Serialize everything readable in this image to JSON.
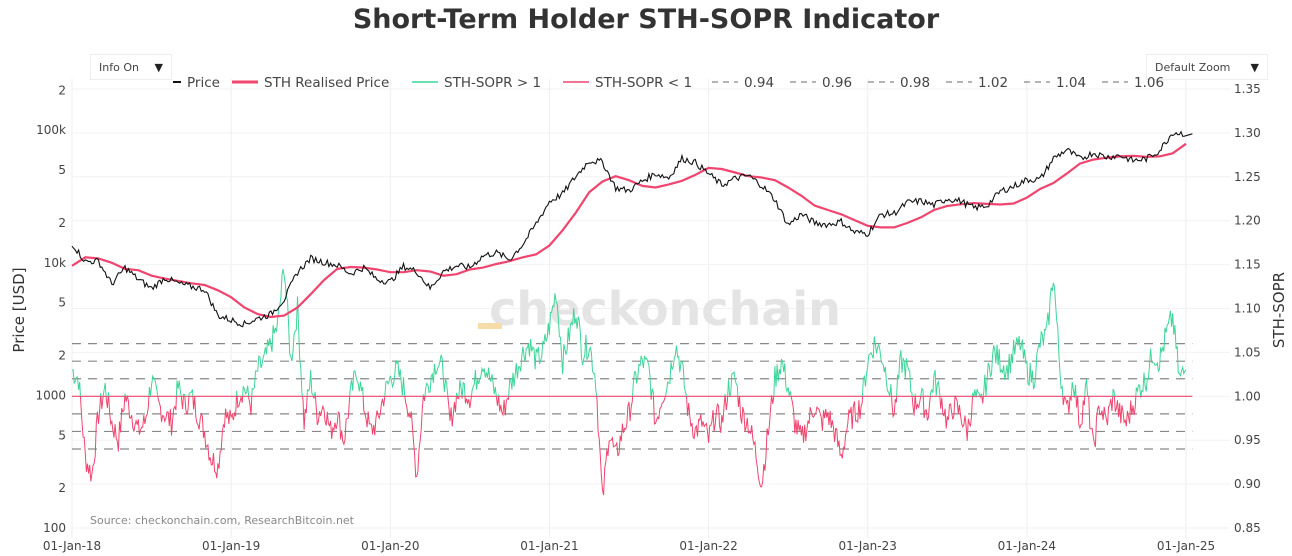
{
  "title": "Short-Term Holder STH-SOPR Indicator",
  "controls": {
    "info_label": "Info On",
    "zoom_label": "Default Zoom",
    "caret": "▼"
  },
  "source": "Source: checkonchain.com, ResearchBitcoin.net",
  "watermark": "checkonchain",
  "colors": {
    "price": "#111111",
    "realised": "#f0456e",
    "sopr_up": "#3ed598",
    "sopr_down": "#f0456e",
    "dash": "#888888",
    "grid": "#eeeeee"
  },
  "chart_data": {
    "type": "line",
    "title": "Short-Term Holder STH-SOPR Indicator",
    "legend_position": "top",
    "grid": true,
    "x_ticks": [
      "01-Jan-18",
      "01-Jan-19",
      "01-Jan-20",
      "01-Jan-21",
      "01-Jan-22",
      "01-Jan-23",
      "01-Jan-24",
      "01-Jan-25"
    ],
    "y_left": {
      "label": "Price [USD]",
      "scale": "log",
      "range": [
        100,
        250000
      ],
      "ticks": [
        {
          "v": 100,
          "t": "100"
        },
        {
          "v": 200,
          "t": "2"
        },
        {
          "v": 500,
          "t": "5"
        },
        {
          "v": 1000,
          "t": "1000"
        },
        {
          "v": 2000,
          "t": "2"
        },
        {
          "v": 5000,
          "t": "5"
        },
        {
          "v": 10000,
          "t": "10k"
        },
        {
          "v": 20000,
          "t": "2"
        },
        {
          "v": 50000,
          "t": "5"
        },
        {
          "v": 100000,
          "t": "100k"
        },
        {
          "v": 200000,
          "t": "2"
        }
      ]
    },
    "y_right": {
      "label": "STH-SOPR",
      "scale": "linear",
      "range": [
        0.85,
        1.35
      ],
      "ticks": [
        "0.85",
        "0.90",
        "0.95",
        "1.00",
        "1.05",
        "1.10",
        "1.15",
        "1.20",
        "1.25",
        "1.30",
        "1.35"
      ]
    },
    "legend": [
      {
        "name": "Price",
        "style": "solid",
        "color": "#111111"
      },
      {
        "name": "STH Realised Price",
        "style": "thick",
        "color": "#f0456e"
      },
      {
        "name": "STH-SOPR > 1",
        "style": "solid",
        "color": "#3ed598"
      },
      {
        "name": "STH-SOPR < 1",
        "style": "solid",
        "color": "#f0456e"
      },
      {
        "name": "0.94",
        "style": "dash"
      },
      {
        "name": "0.96",
        "style": "dash"
      },
      {
        "name": "0.98",
        "style": "dash"
      },
      {
        "name": "1.02",
        "style": "dash"
      },
      {
        "name": "1.04",
        "style": "dash"
      },
      {
        "name": "1.06",
        "style": "dash"
      }
    ],
    "reference_levels": [
      0.94,
      0.96,
      0.98,
      1.02,
      1.04,
      1.06
    ],
    "baseline": 1.0,
    "monthly_start": "2018-01",
    "price_monthly": [
      14000,
      10200,
      10300,
      6900,
      9200,
      7500,
      6400,
      7700,
      7000,
      6600,
      6300,
      4000,
      3700,
      3450,
      3800,
      4100,
      5300,
      8500,
      10800,
      10100,
      9600,
      8300,
      9200,
      7500,
      7200,
      9400,
      8600,
      6400,
      8600,
      9500,
      9200,
      11300,
      11900,
      10600,
      13800,
      19700,
      29000,
      33100,
      45000,
      58900,
      57700,
      36700,
      35000,
      41500,
      47100,
      43800,
      61300,
      57000,
      47000,
      38500,
      43200,
      45500,
      38500,
      30000,
      19300,
      23300,
      20000,
      19400,
      20500,
      17000,
      16600,
      23100,
      23600,
      28500,
      29200,
      27200,
      30500,
      29200,
      25900,
      27000,
      34600,
      37700,
      42300,
      42600,
      61200,
      71300,
      60600,
      67500,
      62700,
      64600,
      58900,
      60800,
      70200,
      96400,
      94000
    ],
    "sth_realised_monthly": [
      9500,
      11000,
      10800,
      10000,
      9000,
      8800,
      8000,
      7600,
      7300,
      7000,
      6800,
      6200,
      5500,
      4600,
      4100,
      3900,
      4000,
      4600,
      5800,
      7400,
      9000,
      9300,
      9200,
      8900,
      8500,
      8500,
      8800,
      8600,
      8000,
      8200,
      8900,
      9200,
      9800,
      10300,
      11000,
      11600,
      13500,
      17600,
      24000,
      34000,
      41000,
      45000,
      42000,
      38000,
      37000,
      39000,
      41500,
      46000,
      52000,
      51000,
      48000,
      45000,
      44000,
      42000,
      37000,
      32000,
      27000,
      25000,
      23200,
      21000,
      19000,
      18500,
      18500,
      20000,
      22000,
      25000,
      26800,
      27600,
      28200,
      27800,
      27500,
      28000,
      31000,
      36000,
      40000,
      47000,
      56000,
      60000,
      62000,
      63500,
      64000,
      63000,
      63500,
      67000,
      79000
    ],
    "sopr_semimonthly": [
      1.03,
      1.02,
      0.93,
      0.91,
      0.98,
      1.01,
      0.97,
      0.95,
      1.0,
      0.98,
      0.96,
      0.97,
      1.02,
      0.99,
      0.98,
      0.97,
      1.01,
      0.99,
      1.0,
      0.98,
      0.96,
      0.93,
      0.92,
      0.98,
      0.97,
      1.0,
      1.01,
      0.99,
      1.03,
      1.04,
      1.06,
      1.08,
      1.15,
      1.04,
      1.1,
      0.97,
      1.02,
      0.98,
      0.99,
      0.96,
      0.98,
      0.95,
      1.0,
      1.03,
      0.99,
      0.96,
      0.97,
      1.0,
      1.02,
      1.03,
      1.01,
      0.98,
      0.91,
      1.0,
      1.02,
      1.04,
      1.03,
      0.97,
      1.0,
      1.01,
      1.0,
      1.02,
      1.04,
      1.02,
      1.0,
      0.98,
      1.01,
      1.03,
      1.05,
      1.06,
      1.04,
      1.05,
      1.08,
      1.12,
      1.04,
      1.07,
      1.1,
      1.05,
      1.06,
      1.02,
      0.88,
      0.96,
      0.93,
      0.96,
      0.98,
      1.02,
      1.04,
      1.03,
      0.97,
      1.0,
      1.02,
      1.06,
      1.03,
      0.98,
      0.96,
      0.97,
      0.95,
      0.98,
      0.97,
      1.01,
      1.02,
      0.98,
      0.97,
      0.94,
      0.9,
      0.96,
      1.02,
      1.04,
      1.01,
      0.97,
      0.95,
      0.97,
      0.99,
      0.97,
      0.98,
      0.96,
      0.93,
      0.97,
      0.98,
      0.99,
      1.04,
      1.06,
      1.05,
      1.02,
      0.98,
      1.04,
      1.03,
      0.99,
      1.0,
      0.98,
      1.02,
      1.0,
      0.97,
      0.99,
      0.98,
      0.96,
      1.0,
      0.99,
      1.02,
      1.05,
      1.04,
      1.03,
      1.05,
      1.06,
      1.03,
      1.02,
      1.06,
      1.07,
      1.14,
      1.03,
      0.98,
      1.02,
      0.97,
      1.01,
      0.94,
      0.99,
      0.97,
      1.0,
      0.98,
      0.97,
      0.99,
      1.01,
      1.02,
      1.05,
      1.04,
      1.07,
      1.09,
      1.02,
      1.03
    ]
  }
}
